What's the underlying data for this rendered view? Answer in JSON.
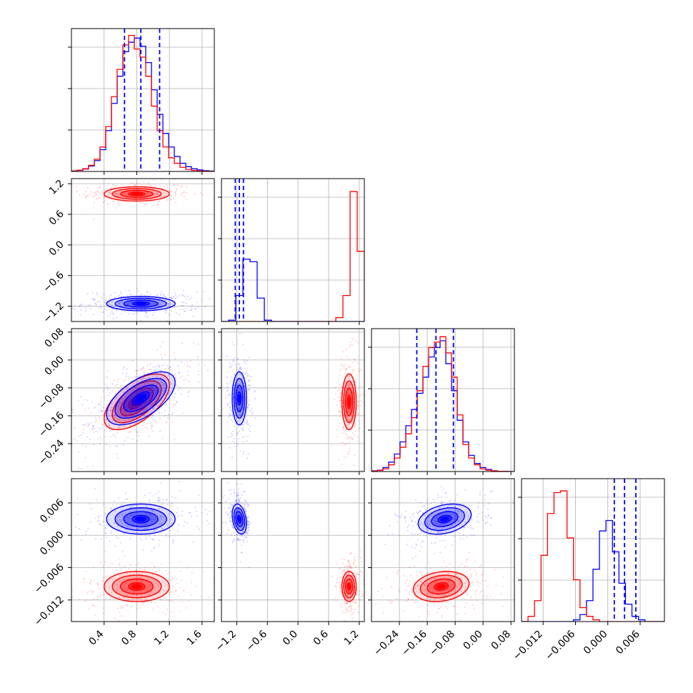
{
  "chart_data": {
    "type": "corner",
    "grid": true,
    "parameters": [
      {
        "index": 0,
        "range": [
          0.0,
          1.75
        ],
        "ticks": [
          0.4,
          0.8,
          1.2,
          1.6
        ],
        "tick_labels": [
          "0.4",
          "0.8",
          "1.2",
          "1.6"
        ]
      },
      {
        "index": 1,
        "range": [
          -1.5,
          1.3
        ],
        "ticks": [
          -1.2,
          -0.6,
          0.0,
          0.6,
          1.2
        ],
        "tick_labels": [
          "−1.2",
          "−0.6",
          "0.0",
          "0.6",
          "1.2"
        ]
      },
      {
        "index": 2,
        "range": [
          -0.32,
          0.09
        ],
        "ticks": [
          -0.24,
          -0.16,
          -0.08,
          0.0,
          0.08
        ],
        "tick_labels": [
          "−0.24",
          "−0.16",
          "−0.08",
          "0.00",
          "0.08"
        ]
      },
      {
        "index": 3,
        "range": [
          -0.016,
          0.0105
        ],
        "ticks": [
          -0.012,
          -0.006,
          0.0,
          0.006
        ],
        "tick_labels": [
          "−0.012",
          "−0.006",
          "0.000",
          "0.006"
        ]
      }
    ],
    "series": [
      {
        "color": "#ff0000",
        "means": [
          0.8,
          1.0,
          -0.12,
          -0.0095
        ],
        "sigmas": [
          0.2,
          0.07,
          0.04,
          0.0014
        ],
        "correlations": {
          "0-2": 0.6,
          "2-3": 0.2
        }
      },
      {
        "color": "#0000ff",
        "means": [
          0.85,
          -1.15,
          -0.11,
          0.003
        ],
        "sigmas": [
          0.21,
          0.07,
          0.038,
          0.0014
        ],
        "correlations": {
          "0-2": 0.6,
          "1-3": -0.3,
          "2-3": 0.3
        }
      }
    ],
    "quantile_lines": {
      "color": "#0000ff",
      "values": [
        [
          0.65,
          0.85,
          1.08
        ],
        [
          -1.23,
          -1.15,
          -1.07
        ],
        [
          -0.19,
          -0.135,
          -0.085
        ],
        [
          0.0012,
          0.0031,
          0.0052
        ]
      ]
    },
    "histograms": [
      {
        "bins": [
          0.0,
          1.75,
          25
        ],
        "red": [
          0.4,
          1.0,
          2.0,
          4.5,
          9,
          18,
          33,
          55,
          75,
          93,
          100,
          90,
          84,
          70,
          48,
          30,
          18,
          10,
          6,
          3,
          1.5,
          0.8,
          0.4,
          0.2,
          0.1
        ],
        "blue": [
          0.3,
          0.8,
          1.8,
          4,
          8,
          16,
          30,
          50,
          70,
          88,
          95,
          98,
          92,
          80,
          60,
          42,
          28,
          18,
          11,
          6,
          3.5,
          2,
          1.2,
          0.6,
          0.3
        ],
        "ymax": 105
      },
      {
        "bins": [
          -1.5,
          1.3,
          20
        ],
        "red": [
          0,
          0,
          0,
          0,
          0,
          0,
          0,
          0,
          0,
          0,
          0,
          0,
          0,
          0,
          0,
          0,
          3,
          20,
          100,
          54
        ],
        "blue": [
          0,
          1,
          20,
          48,
          46,
          18,
          1,
          0,
          0,
          0,
          0,
          0,
          0,
          0,
          0,
          0,
          0,
          0,
          0,
          0
        ],
        "ymax": 110
      },
      {
        "bins": [
          -0.32,
          0.09,
          25
        ],
        "red": [
          0.3,
          0.8,
          2,
          5,
          10,
          18,
          28,
          40,
          60,
          78,
          92,
          96,
          100,
          88,
          70,
          42,
          20,
          10,
          5,
          2,
          1,
          0.5,
          0.2,
          0.1,
          0
        ],
        "blue": [
          0.5,
          1,
          3,
          7,
          13,
          22,
          34,
          46,
          58,
          70,
          85,
          92,
          97,
          80,
          60,
          38,
          22,
          12,
          6,
          3,
          1.5,
          0.6,
          0.2,
          0.1,
          0
        ],
        "ymax": 106
      },
      {
        "bins": [
          -0.016,
          0.0105,
          22
        ],
        "red": [
          0,
          3,
          12,
          38,
          62,
          74,
          75,
          48,
          24,
          8,
          3,
          1,
          0,
          0,
          0,
          0,
          0,
          0,
          0,
          0,
          0,
          0
        ],
        "blue": [
          0,
          0,
          0,
          0,
          0,
          0,
          0,
          0,
          1,
          4,
          12,
          30,
          52,
          58,
          40,
          22,
          10,
          3,
          1,
          0,
          0,
          0
        ],
        "ymax": 82
      }
    ],
    "contour_levels_sigma": [
      0.5,
      1.0,
      1.5,
      2.0
    ]
  }
}
